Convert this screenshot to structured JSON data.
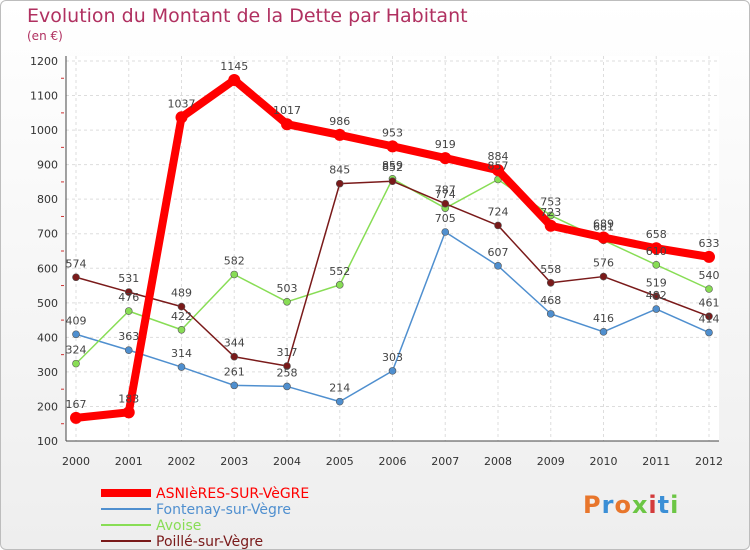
{
  "header": {
    "title": "Evolution du Montant de la Dette par Habitant",
    "subtitle": "(en €)"
  },
  "logo": {
    "text": "Proxiti"
  },
  "chart_data": {
    "type": "line",
    "title": "Evolution du Montant de la Dette par Habitant",
    "subtitle": "(en €)",
    "x": [
      "2000",
      "2001",
      "2002",
      "2003",
      "2004",
      "2005",
      "2006",
      "2007",
      "2008",
      "2009",
      "2010",
      "2011",
      "2012"
    ],
    "ylim": [
      100,
      1200
    ],
    "yticks": [
      100,
      200,
      300,
      400,
      500,
      600,
      700,
      800,
      900,
      1000,
      1100,
      1200
    ],
    "grid": true,
    "legend_placement": "bottom-left",
    "series": [
      {
        "name": "ASNIèRES-SUR-VèGRE",
        "color": "#ff0000",
        "values": [
          167,
          183,
          1037,
          1145,
          1017,
          986,
          953,
          919,
          884,
          723,
          689,
          658,
          633
        ]
      },
      {
        "name": "Fontenay-sur-Vègre",
        "color": "#4f8fcf",
        "values": [
          409,
          363,
          314,
          261,
          258,
          214,
          303,
          705,
          607,
          468,
          416,
          482,
          414
        ]
      },
      {
        "name": "Avoise",
        "color": "#88dd55",
        "values": [
          324,
          476,
          422,
          582,
          503,
          552,
          859,
          774,
          857,
          753,
          681,
          610,
          540
        ]
      },
      {
        "name": "Poillé-sur-Vègre",
        "color": "#7a1a1a",
        "values": [
          574,
          531,
          489,
          344,
          317,
          845,
          852,
          787,
          724,
          558,
          576,
          519,
          461
        ]
      }
    ]
  }
}
